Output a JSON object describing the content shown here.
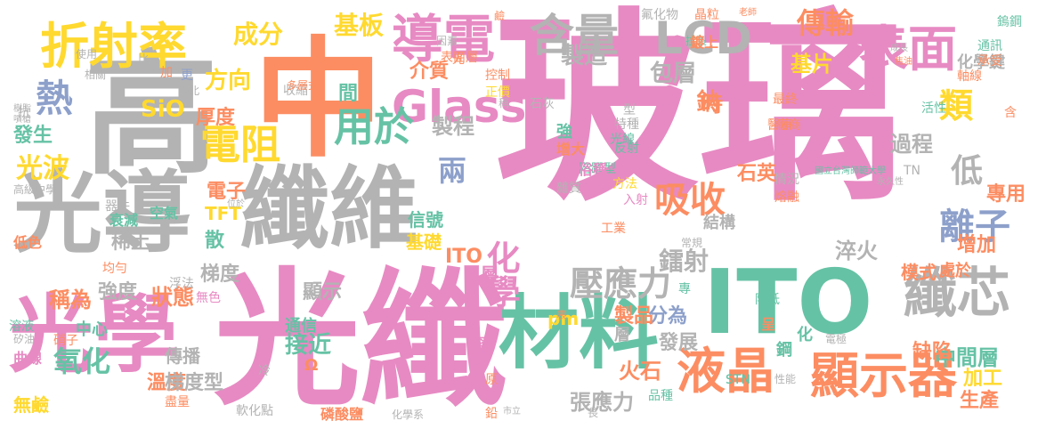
{
  "palette": {
    "pink": "#e78ac3",
    "gray": "#b3b3b3",
    "orange": "#fc8d62",
    "green": "#66c2a5",
    "blue": "#8da0cb",
    "yellow": "#ffd92f",
    "tan": "#e5c494",
    "lime": "#a6d854"
  },
  "words": [
    "玻璃",
    "光纖",
    "高",
    "中",
    "光導",
    "纖維",
    "ITO",
    "光學",
    "材料",
    "折射率",
    "導電",
    "含量",
    "LCD",
    "表面",
    "液晶",
    "顯示器",
    "纖芯",
    "Glass",
    "熱",
    "電阻",
    "用於",
    "類",
    "吸收",
    "離子",
    "低",
    "化學",
    "壓應力",
    "成分",
    "基板",
    "傳輸",
    "光波",
    "氧化",
    "兩",
    "鈉",
    "鐳射",
    "石英",
    "接近",
    "中間層",
    "介質",
    "製程",
    "製造",
    "包層",
    "基片",
    "時",
    "方向",
    "厚度",
    "發生",
    "SiO",
    "信號",
    "基礎",
    "淬火",
    "過程",
    "專用",
    "增加",
    "稱為",
    "狀態",
    "顯示",
    "梯度",
    "強度",
    "電子",
    "TFT",
    "散",
    "稀土",
    "通信",
    "傳播",
    "溫度",
    "梯度型",
    "中心",
    "Ω",
    "張應力",
    "火石",
    "分為",
    "製品",
    "發展",
    "缺陷",
    "加工",
    "生產",
    "無鹼",
    "曲線",
    "pm",
    "層",
    "化",
    "鋼",
    "結構",
    "處於",
    "模式",
    "層",
    "ITO",
    "衰減",
    "空氣",
    "器件",
    "均勻",
    "浮法",
    "硝子",
    "溶液",
    "矽油",
    "低色",
    "無色",
    "冷",
    "軟化點",
    "盡量",
    "磷酸鹽",
    "化學系",
    "鉛",
    "市立",
    "長",
    "率",
    "原",
    "石灰",
    "型",
    "強",
    "特種",
    "光線",
    "醫療",
    "廠商",
    "最終",
    "反射",
    "稱",
    "熔融",
    "常規",
    "工業",
    "方法",
    "階躍型",
    "增大",
    "雜質",
    "入射",
    "俗稱",
    "情況",
    "拉製",
    "鍍上",
    "晶粒",
    "氟化物",
    "化學鍵",
    "軸線",
    "通訊",
    "承受",
    "鎢鋼",
    "活性",
    "含",
    "TN",
    "永久性",
    "國立台灣師範大學",
    "專",
    "呈",
    "降低",
    "STN",
    "品種",
    "性能",
    "電極",
    "STN",
    "收縮",
    "間",
    "正價",
    "控制",
    "光",
    "表面層",
    "因素",
    "鹼",
    "老師",
    "焦油",
    "成長",
    "抗",
    "相關",
    "樹脂",
    "噴槍",
    "高級中學",
    "位於",
    "使用",
    "比",
    "加",
    "更",
    "臺北",
    "多層式",
    "表"
  ]
}
